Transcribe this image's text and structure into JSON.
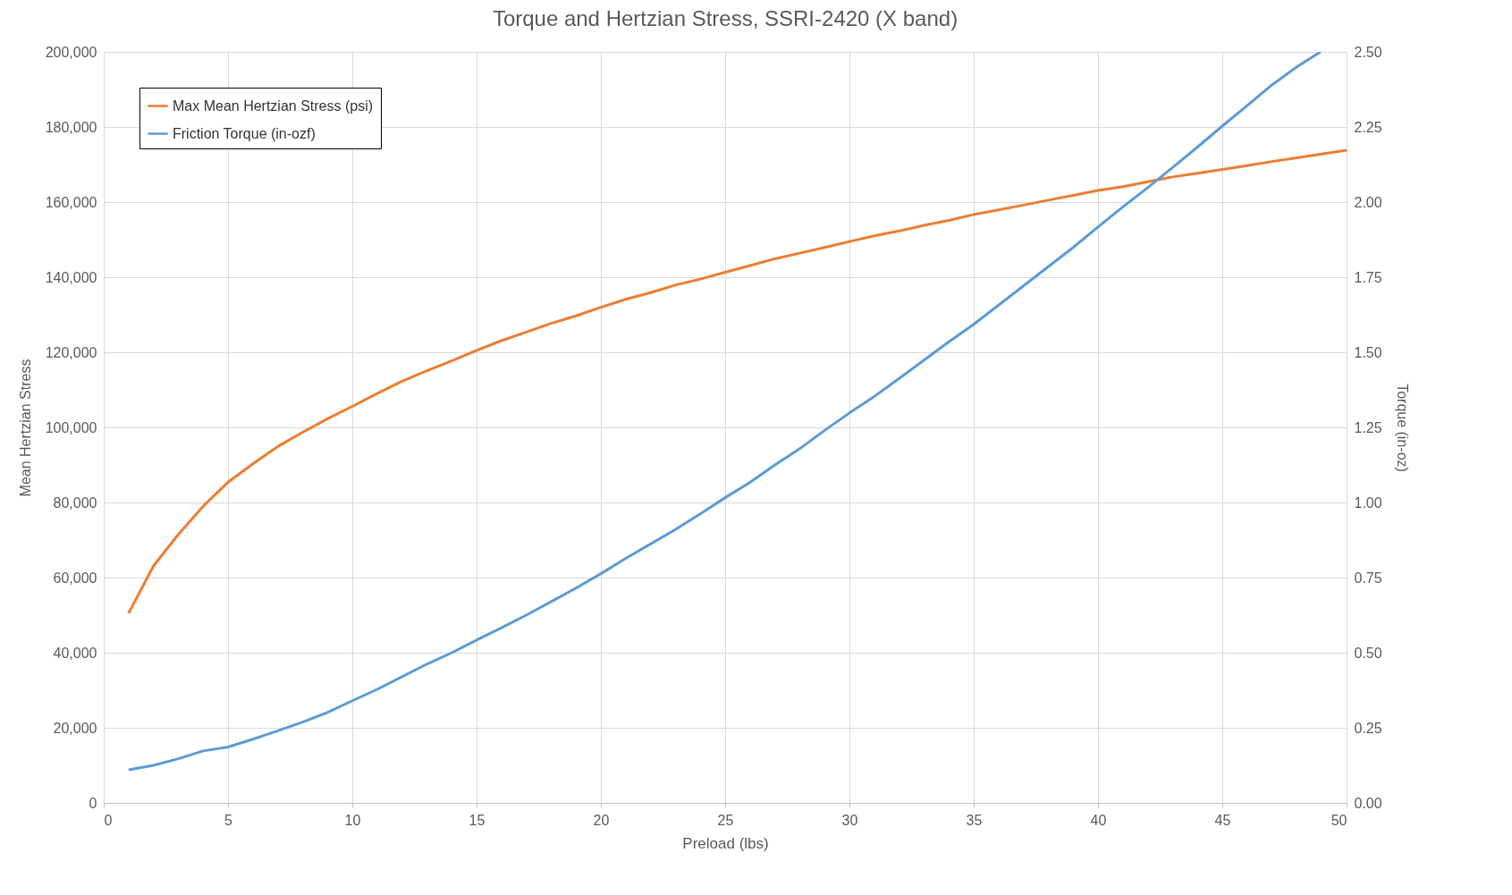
{
  "chart_data": {
    "type": "line",
    "title": "Torque and Hertzian Stress, SSRI-2420 (X band)",
    "xlabel": "Preload (lbs)",
    "ylabel": "Mean Hertzian Stress",
    "y2label": "Torque (in-oz)",
    "xlim": [
      0,
      50
    ],
    "xticks": [
      0,
      5,
      10,
      15,
      20,
      25,
      30,
      35,
      40,
      45,
      50
    ],
    "ylim": [
      0,
      200000
    ],
    "yticks": [
      {
        "value": 0,
        "label": "0"
      },
      {
        "value": 20000,
        "label": "20,000"
      },
      {
        "value": 40000,
        "label": "40,000"
      },
      {
        "value": 60000,
        "label": "60,000"
      },
      {
        "value": 80000,
        "label": "80,000"
      },
      {
        "value": 100000,
        "label": "100,000"
      },
      {
        "value": 120000,
        "label": "120,000"
      },
      {
        "value": 140000,
        "label": "140,000"
      },
      {
        "value": 160000,
        "label": "160,000"
      },
      {
        "value": 180000,
        "label": "180,000"
      },
      {
        "value": 200000,
        "label": "200,000"
      }
    ],
    "y2lim": [
      0,
      2.5
    ],
    "y2ticks": [
      {
        "value": 0,
        "label": "0.00"
      },
      {
        "value": 0.25,
        "label": "0.25"
      },
      {
        "value": 0.5,
        "label": "0.50"
      },
      {
        "value": 0.75,
        "label": "0.75"
      },
      {
        "value": 1,
        "label": "1.00"
      },
      {
        "value": 1.25,
        "label": "1.25"
      },
      {
        "value": 1.5,
        "label": "1.50"
      },
      {
        "value": 1.75,
        "label": "1.75"
      },
      {
        "value": 2,
        "label": "2.00"
      },
      {
        "value": 2.25,
        "label": "2.25"
      },
      {
        "value": 2.5,
        "label": "2.50"
      }
    ],
    "grid": true,
    "legend": "top left",
    "marker": "none",
    "line_style": "solid",
    "series": [
      {
        "name": "Max Mean Hertzian Stress (psi)",
        "color": "#ed7d31",
        "x": [
          1,
          2,
          3,
          4,
          5,
          6,
          7,
          8,
          9,
          10,
          11,
          12,
          13,
          14,
          15,
          16,
          17,
          18,
          19,
          20,
          21,
          22,
          23,
          24,
          25,
          26,
          27,
          28,
          29,
          30,
          31,
          32,
          33,
          34,
          35,
          36,
          37,
          38,
          39,
          40,
          41,
          42,
          43,
          44,
          45,
          46,
          47,
          48,
          49,
          50
        ],
        "values": [
          50500,
          63100,
          71500,
          79000,
          85400,
          90300,
          94900,
          98700,
          102300,
          105600,
          109000,
          112300,
          115100,
          117700,
          120500,
          123100,
          125400,
          127700,
          129700,
          132000,
          134100,
          135900,
          137900,
          139500,
          141300,
          143100,
          144900,
          146400,
          147900,
          149500,
          151000,
          152300,
          153800,
          155100,
          156700,
          157900,
          159200,
          160500,
          161800,
          163100,
          164100,
          165400,
          166700,
          167700,
          168700,
          169700,
          170800,
          171800,
          172800,
          173800
        ]
      },
      {
        "name": "Friction Torque (in-ozf)",
        "color": "#5b9bd5",
        "axis": "y2",
        "x": [
          1,
          2,
          3,
          4,
          5,
          6,
          7,
          8,
          9,
          10,
          11,
          12,
          13,
          14,
          15,
          16,
          17,
          18,
          19,
          20,
          21,
          22,
          23,
          24,
          25,
          26,
          27,
          28,
          29,
          30,
          31,
          32,
          33,
          34,
          35,
          36,
          37,
          38,
          39,
          40,
          41,
          42,
          43,
          44,
          45,
          46,
          47,
          48,
          48.95
        ],
        "values": [
          0.11,
          0.125,
          0.147,
          0.173,
          0.186,
          0.212,
          0.24,
          0.269,
          0.301,
          0.34,
          0.378,
          0.42,
          0.462,
          0.5,
          0.542,
          0.583,
          0.625,
          0.67,
          0.715,
          0.763,
          0.814,
          0.862,
          0.91,
          0.962,
          1.016,
          1.067,
          1.125,
          1.179,
          1.24,
          1.298,
          1.353,
          1.413,
          1.474,
          1.535,
          1.593,
          1.657,
          1.721,
          1.785,
          1.849,
          1.917,
          1.984,
          2.048,
          2.115,
          2.183,
          2.253,
          2.321,
          2.39,
          2.45,
          2.5
        ]
      }
    ]
  }
}
